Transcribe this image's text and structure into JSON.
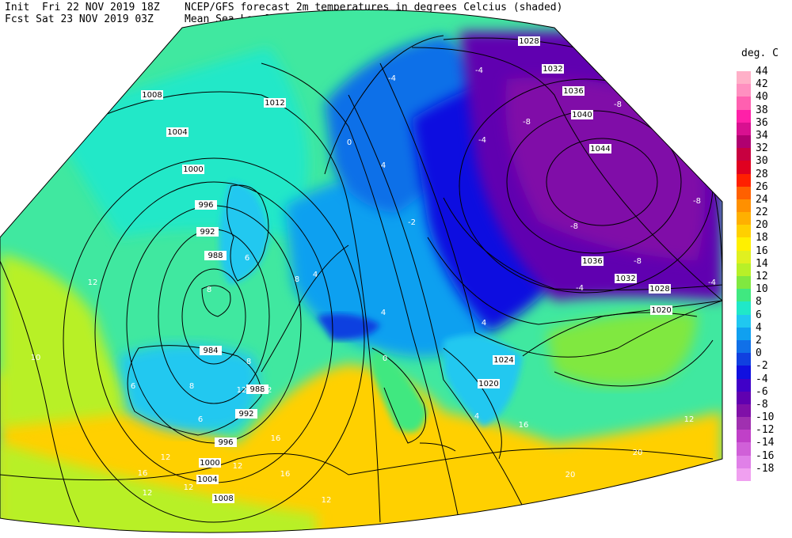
{
  "header": {
    "init_line": "Init  Fri 22 NOV 2019 18Z",
    "fcst_line": "Fcst Sat 23 NOV 2019 03Z",
    "title_line1": "NCEP/GFS forecast 2m temperatures in degrees Celcius (shaded)",
    "title_line2": "Mean Sea-Level Pressure (hPa) (black)."
  },
  "legend": {
    "title": "deg. C",
    "entries": [
      {
        "label": "44",
        "color": "#ffb0c8"
      },
      {
        "label": "42",
        "color": "#ff90c0"
      },
      {
        "label": "40",
        "color": "#ff60b0"
      },
      {
        "label": "38",
        "color": "#ff20a8"
      },
      {
        "label": "36",
        "color": "#d81090"
      },
      {
        "label": "34",
        "color": "#b00070"
      },
      {
        "label": "32",
        "color": "#c80040"
      },
      {
        "label": "30",
        "color": "#e00020"
      },
      {
        "label": "28",
        "color": "#ff2000"
      },
      {
        "label": "26",
        "color": "#ff6000"
      },
      {
        "label": "24",
        "color": "#ff9000"
      },
      {
        "label": "22",
        "color": "#ffb000"
      },
      {
        "label": "20",
        "color": "#ffd000"
      },
      {
        "label": "18",
        "color": "#fff000"
      },
      {
        "label": "16",
        "color": "#e0f020"
      },
      {
        "label": "14",
        "color": "#b8f028"
      },
      {
        "label": "12",
        "color": "#80e840"
      },
      {
        "label": "10",
        "color": "#40e880"
      },
      {
        "label": "8",
        "color": "#20e8c8"
      },
      {
        "label": "6",
        "color": "#20c8f0"
      },
      {
        "label": "4",
        "color": "#10a0f0"
      },
      {
        "label": "2",
        "color": "#1070e8"
      },
      {
        "label": "0",
        "color": "#1040e0"
      },
      {
        "label": "-2",
        "color": "#1010e0"
      },
      {
        "label": "-4",
        "color": "#4000c8"
      },
      {
        "label": "-6",
        "color": "#6000b0"
      },
      {
        "label": "-8",
        "color": "#8010a8"
      },
      {
        "label": "-10",
        "color": "#a030b0"
      },
      {
        "label": "-12",
        "color": "#c040c8"
      },
      {
        "label": "-14",
        "color": "#d060d8"
      },
      {
        "label": "-16",
        "color": "#e080e8"
      },
      {
        "label": "-18",
        "color": "#f0a0f0"
      }
    ]
  },
  "isobar_labels": [
    "1028",
    "1032",
    "1036",
    "1040",
    "1044",
    "1036",
    "1032",
    "1028",
    "1024",
    "1020",
    "1020",
    "1012",
    "1008",
    "1004",
    "1000",
    "996",
    "992",
    "988",
    "984",
    "988",
    "992",
    "996",
    "1000",
    "1004",
    "1008"
  ],
  "temp_labels": [
    "-4",
    "-4",
    "-8",
    "-8",
    "-8",
    "-8",
    "-8",
    "-4",
    "-4",
    "-4",
    "-2",
    "0",
    "0",
    "4",
    "4",
    "4",
    "4",
    "6",
    "8",
    "8",
    "8",
    "8",
    "6",
    "6",
    "4",
    "12",
    "12",
    "12",
    "12",
    "12",
    "16",
    "16",
    "12",
    "16",
    "20",
    "20",
    "12",
    "12",
    "16",
    "12",
    "10"
  ],
  "colors": {
    "background": "#ffffff",
    "isobar": "#000000",
    "coastline": "#000000"
  }
}
